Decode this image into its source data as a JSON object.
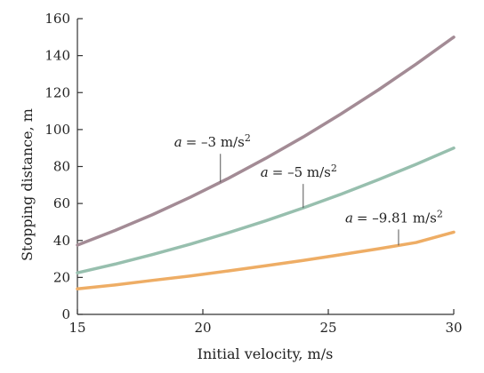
{
  "chart_data": {
    "type": "line",
    "xlabel": "Initial velocity, m/s",
    "ylabel": "Stopping distance, m",
    "xlim": [
      15,
      30
    ],
    "ylim": [
      0,
      160
    ],
    "x_ticks": [
      15,
      20,
      25,
      30
    ],
    "y_ticks": [
      0,
      20,
      40,
      60,
      80,
      100,
      120,
      140,
      160
    ],
    "grid": false,
    "legend": "none",
    "x": [
      15,
      16.5,
      18,
      19.5,
      21,
      22.5,
      24,
      25.5,
      27,
      28.5,
      30
    ],
    "series": [
      {
        "values": [
          37.5,
          45.4,
          54.0,
          63.4,
          73.5,
          84.4,
          96.0,
          108.4,
          121.5,
          135.4,
          150.0
        ],
        "color": "#a38b95",
        "annotation": {
          "var": "a",
          "text": "= –3 m/s",
          "sup": "2",
          "x": 20.7
        }
      },
      {
        "values": [
          22.5,
          27.2,
          32.4,
          38.0,
          44.1,
          50.6,
          57.6,
          65.0,
          72.9,
          81.2,
          90.0
        ],
        "color": "#97bfae",
        "annotation": {
          "var": "a",
          "text": "= –5 m/s",
          "sup": "2",
          "x": 24.0
        }
      },
      {
        "values": [
          13.8,
          15.9,
          18.4,
          20.8,
          23.5,
          26.3,
          29.2,
          32.3,
          35.5,
          38.9,
          44.5
        ],
        "color": "#eead65",
        "annotation": {
          "var": "a",
          "text": "= –9.81 m/s",
          "sup": "2",
          "x": 27.8
        }
      }
    ]
  }
}
